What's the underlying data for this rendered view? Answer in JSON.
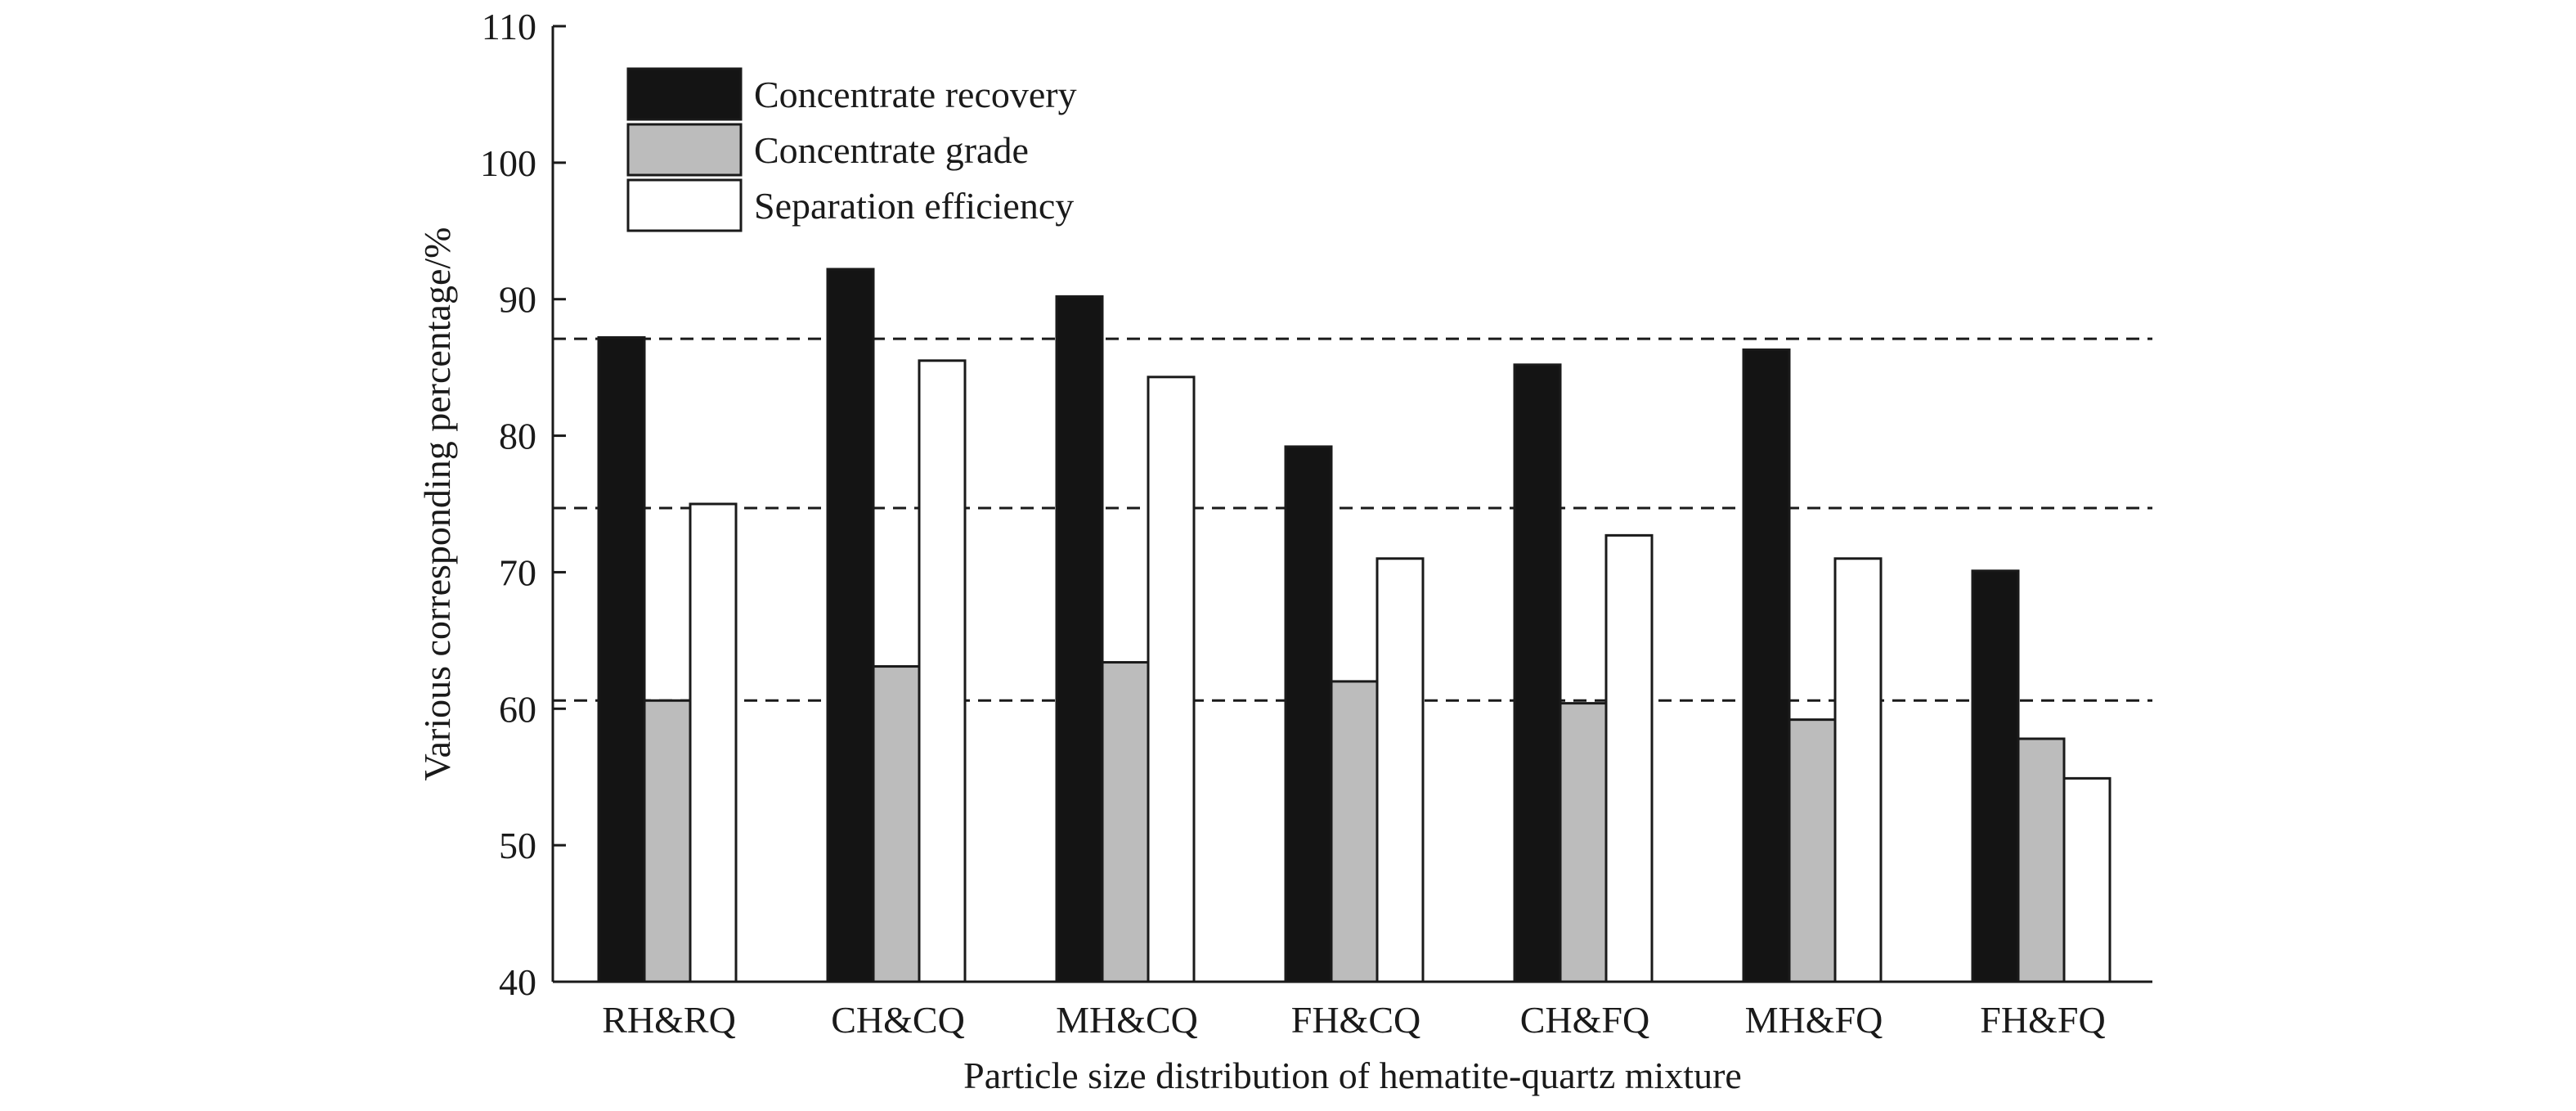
{
  "chart_data": {
    "type": "bar",
    "categories": [
      "RH&RQ",
      "CH&CQ",
      "MH&CQ",
      "FH&CQ",
      "CH&FQ",
      "MH&FQ",
      "FH&FQ"
    ],
    "series": [
      {
        "name": "Concentrate recovery",
        "color": "#141414",
        "values": [
          87.2,
          92.2,
          90.2,
          79.2,
          85.2,
          86.3,
          70.1
        ]
      },
      {
        "name": "Concentrate grade",
        "color": "#bcbcbc",
        "values": [
          60.6,
          63.1,
          63.4,
          62.0,
          60.4,
          59.2,
          57.8
        ]
      },
      {
        "name": "Separation efficiency",
        "color": "#ffffff",
        "values": [
          75.0,
          85.5,
          84.3,
          71.0,
          72.7,
          71.0,
          54.9
        ]
      }
    ],
    "ylim": [
      40,
      110
    ],
    "yticks": [
      40,
      50,
      60,
      70,
      80,
      90,
      100,
      110
    ],
    "reference_lines": [
      87.1,
      74.7,
      60.6
    ],
    "xlabel": "Particle size distribution of hematite-quartz mixture",
    "ylabel": "Various corresponding percentage/%",
    "legend_position": "top-left",
    "grid": false
  }
}
